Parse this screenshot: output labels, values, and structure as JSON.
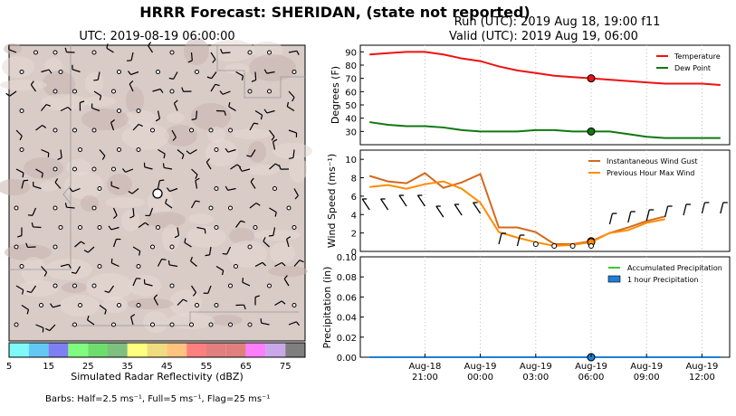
{
  "header": {
    "title": "HRRR Forecast: SHERIDAN, (state not reported)",
    "run": "Run (UTC): 2019 Aug 18, 19:00 f11",
    "valid": "Valid (UTC): 2019 Aug 19, 06:00"
  },
  "map": {
    "title": "UTC: 2019-08-19 06:00:00",
    "terrain_color": "#d9cbc6",
    "colorbar": {
      "label": "Simulated Radar Reflectivity (dBZ)",
      "ticks": [
        "5",
        "15",
        "25",
        "35",
        "45",
        "55",
        "65",
        "75"
      ],
      "colors": [
        "#7ff9f9",
        "#62c9f4",
        "#7f7ff4",
        "#7ffd7f",
        "#6ddd6d",
        "#7fbf7f",
        "#fefe7f",
        "#efdc7f",
        "#ffc27f",
        "#fe7f7f",
        "#e37f7f",
        "#e17f7f",
        "#fe7ffe",
        "#c8a8e8",
        "#7f7f7f"
      ]
    }
  },
  "footer": {
    "barbs_text": "Barbs: Half=2.5 ms⁻¹, Full=5 ms⁻¹, Flag=25 ms⁻¹"
  },
  "chart_data": [
    {
      "type": "line",
      "ylabel": "Degrees (F)",
      "ylim": [
        20,
        95
      ],
      "yticks": [
        "30",
        "40",
        "50",
        "60",
        "70",
        "80",
        "90"
      ],
      "x": [
        "Aug-18 18:00",
        "19:00",
        "20:00",
        "21:00",
        "22:00",
        "23:00",
        "Aug-19 00:00",
        "01:00",
        "02:00",
        "03:00",
        "04:00",
        "05:00",
        "06:00",
        "07:00",
        "08:00",
        "09:00",
        "10:00",
        "11:00",
        "12:00",
        "13:00"
      ],
      "series": [
        {
          "name": "Temperature",
          "color": "#ee1111",
          "values": [
            88,
            89,
            90,
            90,
            88,
            85,
            83,
            79,
            76,
            74,
            72,
            71,
            70,
            69,
            68,
            67,
            66,
            66,
            66,
            65
          ]
        },
        {
          "name": "Dew Point",
          "color": "#117711",
          "values": [
            37,
            35,
            34,
            34,
            33,
            31,
            30,
            30,
            30,
            31,
            31,
            30,
            30,
            30,
            28,
            26,
            25,
            25,
            25,
            25
          ]
        }
      ],
      "current_marker_x": "Aug-19 06:00",
      "legend": "top-right"
    },
    {
      "type": "line",
      "ylabel": "Wind Speed (ms⁻¹)",
      "ylim": [
        0,
        11
      ],
      "yticks": [
        "0",
        "2",
        "4",
        "6",
        "8",
        "10"
      ],
      "series": [
        {
          "name": "Instantaneous Wind Gust",
          "color": "#d2691e",
          "values": [
            8.2,
            7.6,
            7.4,
            8.5,
            6.9,
            7.5,
            8.4,
            2.6,
            2.6,
            2.1,
            0.8,
            0.8,
            1.1,
            2.0,
            2.6,
            3.3,
            3.8,
            null,
            null,
            null
          ]
        },
        {
          "name": "Previous Hour Max Wind",
          "color": "#ff8c00",
          "values": [
            7.0,
            7.2,
            6.8,
            7.3,
            7.6,
            6.8,
            5.3,
            2.1,
            1.5,
            1.0,
            0.6,
            0.7,
            1.0,
            2.0,
            2.3,
            3.1,
            3.5,
            null,
            null,
            null
          ]
        }
      ],
      "legend": "top-right"
    },
    {
      "type": "line",
      "ylabel": "Precipitation (in)",
      "ylim": [
        0,
        0.1
      ],
      "yticks": [
        "0.00",
        "0.02",
        "0.04",
        "0.06",
        "0.08",
        "0.10"
      ],
      "xticks": [
        {
          "date": "Aug-18",
          "time": "21:00"
        },
        {
          "date": "Aug-19",
          "time": "00:00"
        },
        {
          "date": "Aug-19",
          "time": "03:00"
        },
        {
          "date": "Aug-19",
          "time": "06:00"
        },
        {
          "date": "Aug-19",
          "time": "09:00"
        },
        {
          "date": "Aug-19",
          "time": "12:00"
        }
      ],
      "series": [
        {
          "name": "Accumulated Precipitation",
          "color": "#33cc33",
          "values": [
            0,
            0,
            0,
            0,
            0,
            0,
            0,
            0,
            0,
            0,
            0,
            0,
            0,
            0,
            0,
            0,
            0,
            0,
            0,
            0
          ]
        },
        {
          "name": "1 hour Precipitation",
          "color": "#1e7fd6",
          "values": [
            0,
            0,
            0,
            0,
            0,
            0,
            0,
            0,
            0,
            0,
            0,
            0,
            0,
            0,
            0,
            0,
            0,
            0,
            0,
            0
          ]
        }
      ],
      "legend": "top-right"
    }
  ]
}
